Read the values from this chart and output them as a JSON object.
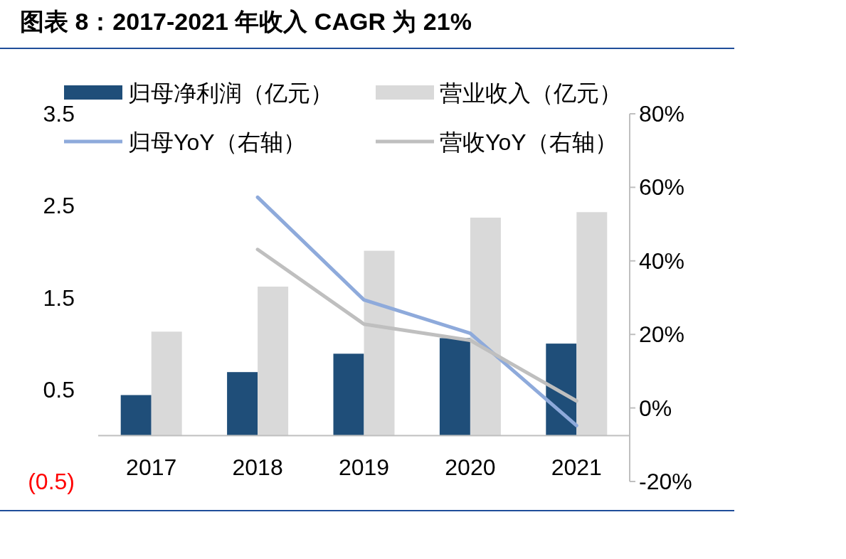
{
  "chart_data": {
    "type": "bar",
    "title": "图表 8：2017-2021 年收入 CAGR 为 21%",
    "categories": [
      "2017",
      "2018",
      "2019",
      "2020",
      "2021"
    ],
    "series": [
      {
        "name": "归母净利润（亿元）",
        "color": "#1f4e79",
        "values": [
          0.44,
          0.69,
          0.89,
          1.06,
          1.0
        ]
      },
      {
        "name": "营业收入（亿元）",
        "color": "#d9d9d9",
        "values": [
          1.13,
          1.62,
          2.01,
          2.37,
          2.43
        ]
      },
      {
        "name": "归母YoY（右轴）",
        "type": "line",
        "axis": "y2",
        "color": "#8eaadb",
        "values": [
          null,
          57.3,
          29.4,
          20.3,
          -4.8
        ]
      },
      {
        "name": "营收YoY（右轴）",
        "type": "line",
        "axis": "y2",
        "color": "#bfbfbf",
        "values": [
          null,
          43.1,
          22.8,
          18.4,
          1.9
        ]
      }
    ],
    "ylim": [
      -0.5,
      3.5
    ],
    "yticks": [
      3.5,
      2.5,
      1.5,
      0.5,
      {
        "value": -0.5,
        "label": "(0.5)"
      }
    ],
    "y2lim": [
      -20,
      80
    ],
    "y2ticks": [
      {
        "value": 80,
        "label": "80%"
      },
      {
        "value": 60,
        "label": "60%"
      },
      {
        "value": 40,
        "label": "40%"
      },
      {
        "value": 20,
        "label": "20%"
      },
      {
        "value": 0,
        "label": "0%"
      },
      {
        "value": -20,
        "label": "-20%"
      }
    ],
    "legend": "top",
    "grid": false,
    "marker": "none"
  }
}
